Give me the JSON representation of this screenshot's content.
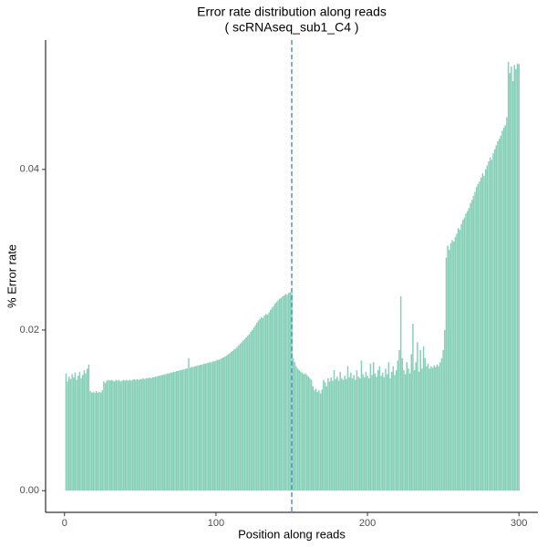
{
  "chart_data": {
    "type": "bar",
    "title": "Error rate distribution along reads",
    "subtitle": "( scRNAseq_sub1_C4 )",
    "x_label": "Position along reads",
    "y_label": "% Error rate",
    "color": "#85d0b7",
    "vline": 150,
    "vline_color": "#3f7fc0",
    "xlim": [
      -12.5,
      312.5
    ],
    "xticks": [
      0,
      100,
      200,
      300
    ],
    "ylim": [
      -0.0027,
      0.0561
    ],
    "yticks": [
      {
        "value": 0,
        "label": "0.00"
      },
      {
        "value": 0.02,
        "label": "0.02"
      },
      {
        "value": 0.04,
        "label": "0.04"
      }
    ],
    "grid": false,
    "x": [
      1,
      2,
      3,
      4,
      5,
      6,
      7,
      8,
      9,
      10,
      11,
      12,
      13,
      14,
      15,
      16,
      17,
      18,
      19,
      20,
      21,
      22,
      23,
      24,
      25,
      26,
      27,
      28,
      29,
      30,
      31,
      32,
      33,
      34,
      35,
      36,
      37,
      38,
      39,
      40,
      41,
      42,
      43,
      44,
      45,
      46,
      47,
      48,
      49,
      50,
      51,
      52,
      53,
      54,
      55,
      56,
      57,
      58,
      59,
      60,
      61,
      62,
      63,
      64,
      65,
      66,
      67,
      68,
      69,
      70,
      71,
      72,
      73,
      74,
      75,
      76,
      77,
      78,
      79,
      80,
      81,
      82,
      83,
      84,
      85,
      86,
      87,
      88,
      89,
      90,
      91,
      92,
      93,
      94,
      95,
      96,
      97,
      98,
      99,
      100,
      101,
      102,
      103,
      104,
      105,
      106,
      107,
      108,
      109,
      110,
      111,
      112,
      113,
      114,
      115,
      116,
      117,
      118,
      119,
      120,
      121,
      122,
      123,
      124,
      125,
      126,
      127,
      128,
      129,
      130,
      131,
      132,
      133,
      134,
      135,
      136,
      137,
      138,
      139,
      140,
      141,
      142,
      143,
      144,
      145,
      146,
      147,
      148,
      149,
      150,
      151,
      152,
      153,
      154,
      155,
      156,
      157,
      158,
      159,
      160,
      161,
      162,
      163,
      164,
      165,
      166,
      167,
      168,
      169,
      170,
      171,
      172,
      173,
      174,
      175,
      176,
      177,
      178,
      179,
      180,
      181,
      182,
      183,
      184,
      185,
      186,
      187,
      188,
      189,
      190,
      191,
      192,
      193,
      194,
      195,
      196,
      197,
      198,
      199,
      200,
      201,
      202,
      203,
      204,
      205,
      206,
      207,
      208,
      209,
      210,
      211,
      212,
      213,
      214,
      215,
      216,
      217,
      218,
      219,
      220,
      221,
      222,
      223,
      224,
      225,
      226,
      227,
      228,
      229,
      230,
      231,
      232,
      233,
      234,
      235,
      236,
      237,
      238,
      239,
      240,
      241,
      242,
      243,
      244,
      245,
      246,
      247,
      248,
      249,
      250,
      251,
      252,
      253,
      254,
      255,
      256,
      257,
      258,
      259,
      260,
      261,
      262,
      263,
      264,
      265,
      266,
      267,
      268,
      269,
      270,
      271,
      272,
      273,
      274,
      275,
      276,
      277,
      278,
      279,
      280,
      281,
      282,
      283,
      284,
      285,
      286,
      287,
      288,
      289,
      290,
      291,
      292,
      293,
      294,
      295,
      296,
      297,
      298,
      299,
      300
    ],
    "values": [
      0.0146,
      0.0136,
      0.0142,
      0.0139,
      0.0145,
      0.0141,
      0.0147,
      0.0138,
      0.0143,
      0.0148,
      0.014,
      0.0144,
      0.015,
      0.0146,
      0.0152,
      0.0157,
      0.0124,
      0.0122,
      0.0123,
      0.0122,
      0.0124,
      0.0122,
      0.0123,
      0.0122,
      0.0125,
      0.0136,
      0.0134,
      0.0137,
      0.0138,
      0.0137,
      0.0138,
      0.0137,
      0.0136,
      0.0138,
      0.0137,
      0.0138,
      0.0136,
      0.0137,
      0.0138,
      0.0137,
      0.0138,
      0.0137,
      0.0138,
      0.0137,
      0.0138,
      0.0139,
      0.0138,
      0.0139,
      0.0138,
      0.0139,
      0.0139,
      0.014,
      0.0139,
      0.014,
      0.014,
      0.0141,
      0.014,
      0.0141,
      0.0141,
      0.0142,
      0.0142,
      0.0143,
      0.0143,
      0.0144,
      0.0144,
      0.0145,
      0.0145,
      0.0146,
      0.0146,
      0.0147,
      0.0147,
      0.0148,
      0.0148,
      0.0149,
      0.0149,
      0.015,
      0.015,
      0.0151,
      0.0151,
      0.0152,
      0.0152,
      0.0165,
      0.0153,
      0.0154,
      0.0154,
      0.0155,
      0.0155,
      0.0156,
      0.0156,
      0.0157,
      0.0157,
      0.0158,
      0.0158,
      0.0159,
      0.0159,
      0.016,
      0.016,
      0.0161,
      0.0161,
      0.0162,
      0.0163,
      0.0163,
      0.0164,
      0.0165,
      0.0166,
      0.0167,
      0.0168,
      0.017,
      0.0171,
      0.0173,
      0.0174,
      0.0176,
      0.0177,
      0.0179,
      0.0181,
      0.0183,
      0.0185,
      0.0187,
      0.0189,
      0.0191,
      0.0193,
      0.0195,
      0.0198,
      0.02,
      0.0203,
      0.0206,
      0.0209,
      0.0212,
      0.0214,
      0.0216,
      0.0215,
      0.0218,
      0.022,
      0.0219,
      0.0222,
      0.0225,
      0.0228,
      0.023,
      0.0233,
      0.0235,
      0.0237,
      0.0239,
      0.024,
      0.0242,
      0.0243,
      0.0245,
      0.0244,
      0.0246,
      0.0247,
      0.0246,
      0.0165,
      0.016,
      0.0155,
      0.0152,
      0.015,
      0.0148,
      0.0147,
      0.0145,
      0.0146,
      0.0144,
      0.0142,
      0.014,
      0.0138,
      0.013,
      0.0125,
      0.0127,
      0.0123,
      0.0125,
      0.0121,
      0.0126,
      0.0138,
      0.0135,
      0.013,
      0.014,
      0.0136,
      0.0141,
      0.0137,
      0.015,
      0.0139,
      0.0142,
      0.0137,
      0.0148,
      0.014,
      0.0138,
      0.0143,
      0.0139,
      0.0155,
      0.0141,
      0.0147,
      0.014,
      0.0144,
      0.0138,
      0.015,
      0.0142,
      0.014,
      0.0162,
      0.0145,
      0.0141,
      0.0148,
      0.0143,
      0.014,
      0.0158,
      0.0144,
      0.016,
      0.0146,
      0.0142,
      0.015,
      0.0155,
      0.0143,
      0.0147,
      0.0141,
      0.0152,
      0.0145,
      0.016,
      0.014,
      0.0148,
      0.0155,
      0.0144,
      0.015,
      0.0162,
      0.0175,
      0.0242,
      0.0165,
      0.015,
      0.0145,
      0.016,
      0.0152,
      0.0146,
      0.017,
      0.0208,
      0.015,
      0.016,
      0.0185,
      0.0148,
      0.0175,
      0.0152,
      0.018,
      0.0165,
      0.0155,
      0.0158,
      0.0152,
      0.0155,
      0.0153,
      0.0156,
      0.0154,
      0.0157,
      0.0155,
      0.016,
      0.0165,
      0.0175,
      0.02,
      0.029,
      0.0305,
      0.03,
      0.0308,
      0.0312,
      0.031,
      0.0316,
      0.032,
      0.0327,
      0.0325,
      0.0332,
      0.0337,
      0.034,
      0.0345,
      0.0348,
      0.0352,
      0.0358,
      0.0362,
      0.0367,
      0.0372,
      0.0378,
      0.0382,
      0.0385,
      0.039,
      0.0395,
      0.0392,
      0.04,
      0.0405,
      0.041,
      0.0415,
      0.0412,
      0.042,
      0.0425,
      0.043,
      0.0435,
      0.0438,
      0.0442,
      0.0448,
      0.0452,
      0.0455,
      0.0465,
      0.0534,
      0.052,
      0.0528,
      0.051,
      0.053,
      0.0525,
      0.0532,
      0.0531
    ]
  }
}
